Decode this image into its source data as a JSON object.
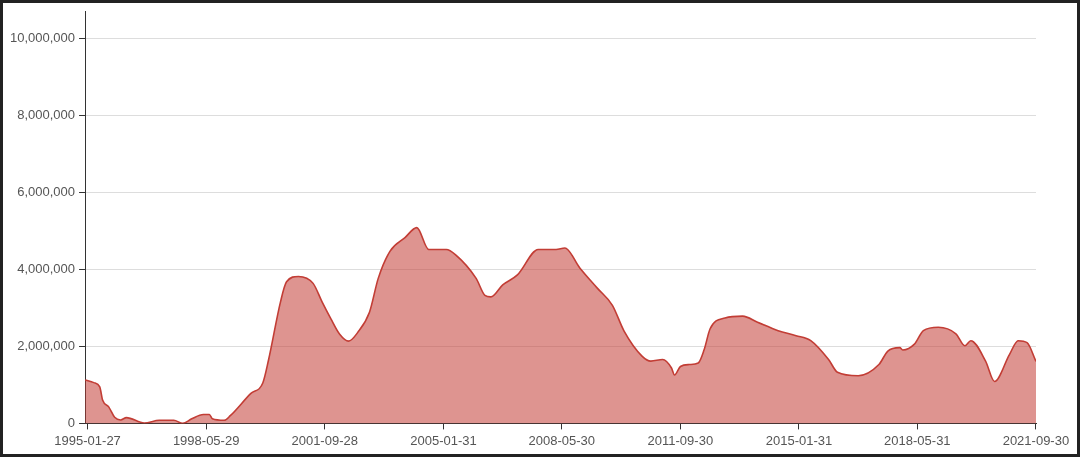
{
  "chart_data": {
    "type": "area",
    "x": [
      "1995-01",
      "1995-04",
      "1995-06",
      "1995-07",
      "1995-09",
      "1995-11",
      "1996-01",
      "1996-03",
      "1996-09",
      "1997-02",
      "1997-07",
      "1997-10",
      "1998-01",
      "1998-05",
      "1998-07",
      "1998-08",
      "1998-12",
      "1999-02",
      "1999-09",
      "2000-01",
      "2000-03",
      "2000-07",
      "2000-09",
      "2001-01",
      "2001-06",
      "2001-09",
      "2001-12",
      "2002-03",
      "2002-06",
      "2002-09",
      "2003-01",
      "2003-04",
      "2003-08",
      "2004-01",
      "2004-05",
      "2004-09",
      "2005-03",
      "2005-06",
      "2006-01",
      "2006-04",
      "2006-06",
      "2006-10",
      "2007-03",
      "2007-10",
      "2008-04",
      "2008-07",
      "2008-12",
      "2009-06",
      "2009-11",
      "2010-03",
      "2010-09",
      "2010-12",
      "2011-04",
      "2011-07",
      "2011-08",
      "2011-10",
      "2012-01",
      "2012-04",
      "2012-06",
      "2012-08",
      "2013-01",
      "2013-07",
      "2013-12",
      "2014-07",
      "2015-01",
      "2015-06",
      "2015-12",
      "2016-03",
      "2016-10",
      "2017-05",
      "2017-08",
      "2017-12",
      "2018-01",
      "2018-05",
      "2018-08",
      "2019-01",
      "2019-07",
      "2019-10",
      "2019-12",
      "2020-05",
      "2020-08",
      "2021-01",
      "2021-04",
      "2021-07",
      "2021-10"
    ],
    "series": [
      {
        "color": "#c23d35",
        "values": [
          1130000,
          1060000,
          950000,
          600000,
          430000,
          160000,
          90000,
          150000,
          10000,
          80000,
          80000,
          0,
          120000,
          230000,
          230000,
          120000,
          80000,
          200000,
          780000,
          1050000,
          1660000,
          3160000,
          3680000,
          3820000,
          3640000,
          3160000,
          2720000,
          2320000,
          2140000,
          2360000,
          2890000,
          3770000,
          4480000,
          4830000,
          5090000,
          4520000,
          4520000,
          4390000,
          3770000,
          3330000,
          3290000,
          3600000,
          3860000,
          4520000,
          4520000,
          4560000,
          4040000,
          3510000,
          3070000,
          2400000,
          1750000,
          1620000,
          1660000,
          1440000,
          1260000,
          1480000,
          1530000,
          1570000,
          1920000,
          2460000,
          2740000,
          2790000,
          2630000,
          2410000,
          2280000,
          2150000,
          1660000,
          1330000,
          1240000,
          1530000,
          1880000,
          1970000,
          1910000,
          2060000,
          2410000,
          2500000,
          2330000,
          2020000,
          2150000,
          1620000,
          1090000,
          1790000,
          2150000,
          2100000,
          1610000
        ]
      }
    ],
    "xlim": [
      "1995-01",
      "2021-10"
    ],
    "xticks": [
      "1995-01-27",
      "1998-05-29",
      "2001-09-28",
      "2005-01-31",
      "2008-05-30",
      "2011-09-30",
      "2015-01-31",
      "2018-05-31",
      "2021-09-30"
    ],
    "ylim": [
      0,
      10700000
    ],
    "yticks": [
      0,
      {
        "value": 2000000,
        "label": "2,000,000"
      },
      {
        "value": 4000000,
        "label": "4,000,000"
      },
      {
        "value": 6000000,
        "label": "6,000,000"
      },
      {
        "value": 8000000,
        "label": "8,000,000"
      },
      {
        "value": 10000000,
        "label": "10,000,000"
      }
    ],
    "grid": "y"
  }
}
